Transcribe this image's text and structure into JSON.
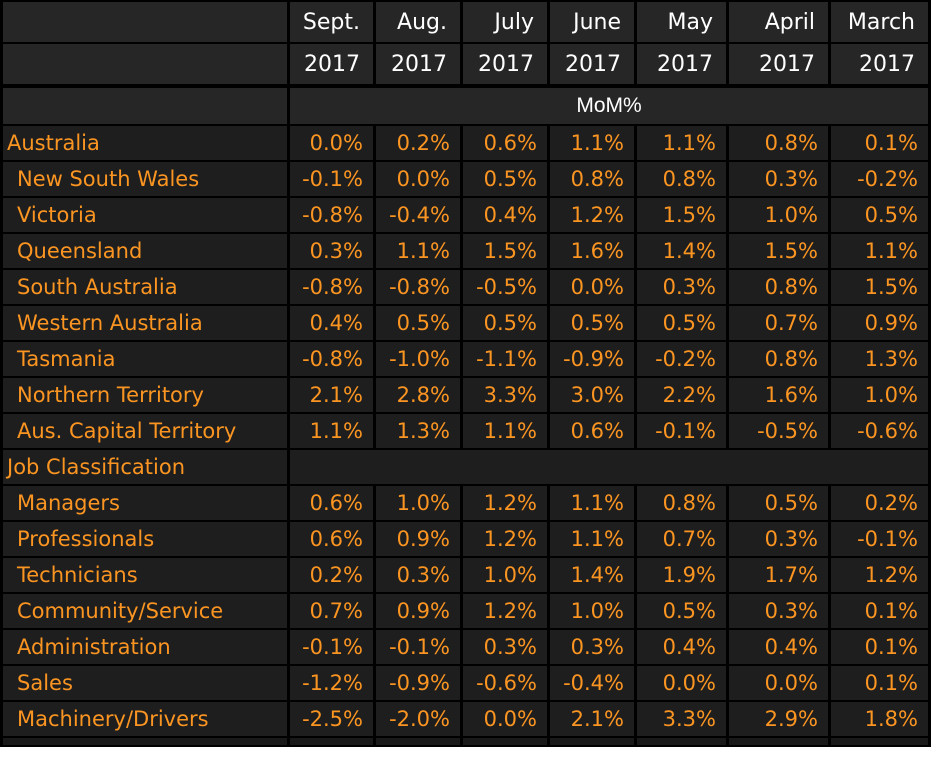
{
  "table": {
    "month_headers": [
      "Sept.",
      "Aug.",
      "July",
      "June",
      "May",
      "April",
      "March"
    ],
    "year_headers": [
      "2017",
      "2017",
      "2017",
      "2017",
      "2017",
      "2017",
      "2017"
    ],
    "unit_header": "MoM%",
    "rows": [
      {
        "label": "Australia",
        "indent": false,
        "section_header": false,
        "values": [
          "0.0%",
          "0.2%",
          "0.6%",
          "1.1%",
          "1.1%",
          "0.8%",
          "0.1%"
        ]
      },
      {
        "label": "New South Wales",
        "indent": true,
        "section_header": false,
        "values": [
          "-0.1%",
          "0.0%",
          "0.5%",
          "0.8%",
          "0.8%",
          "0.3%",
          "-0.2%"
        ]
      },
      {
        "label": "Victoria",
        "indent": true,
        "section_header": false,
        "values": [
          "-0.8%",
          "-0.4%",
          "0.4%",
          "1.2%",
          "1.5%",
          "1.0%",
          "0.5%"
        ]
      },
      {
        "label": "Queensland",
        "indent": true,
        "section_header": false,
        "values": [
          "0.3%",
          "1.1%",
          "1.5%",
          "1.6%",
          "1.4%",
          "1.5%",
          "1.1%"
        ]
      },
      {
        "label": "South Australia",
        "indent": true,
        "section_header": false,
        "values": [
          "-0.8%",
          "-0.8%",
          "-0.5%",
          "0.0%",
          "0.3%",
          "0.8%",
          "1.5%"
        ]
      },
      {
        "label": "Western Australia",
        "indent": true,
        "section_header": false,
        "values": [
          "0.4%",
          "0.5%",
          "0.5%",
          "0.5%",
          "0.5%",
          "0.7%",
          "0.9%"
        ]
      },
      {
        "label": "Tasmania",
        "indent": true,
        "section_header": false,
        "values": [
          "-0.8%",
          "-1.0%",
          "-1.1%",
          "-0.9%",
          "-0.2%",
          "0.8%",
          "1.3%"
        ]
      },
      {
        "label": "Northern Territory",
        "indent": true,
        "section_header": false,
        "values": [
          "2.1%",
          "2.8%",
          "3.3%",
          "3.0%",
          "2.2%",
          "1.6%",
          "1.0%"
        ]
      },
      {
        "label": "Aus. Capital Territory",
        "indent": true,
        "section_header": false,
        "values": [
          "1.1%",
          "1.3%",
          "1.1%",
          "0.6%",
          "-0.1%",
          "-0.5%",
          "-0.6%"
        ]
      },
      {
        "label": "Job Classification",
        "indent": false,
        "section_header": true,
        "values": []
      },
      {
        "label": "Managers",
        "indent": true,
        "section_header": false,
        "values": [
          "0.6%",
          "1.0%",
          "1.2%",
          "1.1%",
          "0.8%",
          "0.5%",
          "0.2%"
        ]
      },
      {
        "label": "Professionals",
        "indent": true,
        "section_header": false,
        "values": [
          "0.6%",
          "0.9%",
          "1.2%",
          "1.1%",
          "0.7%",
          "0.3%",
          "-0.1%"
        ]
      },
      {
        "label": "Technicians",
        "indent": true,
        "section_header": false,
        "values": [
          "0.2%",
          "0.3%",
          "1.0%",
          "1.4%",
          "1.9%",
          "1.7%",
          "1.2%"
        ]
      },
      {
        "label": "Community/Service",
        "indent": true,
        "section_header": false,
        "values": [
          "0.7%",
          "0.9%",
          "1.2%",
          "1.0%",
          "0.5%",
          "0.3%",
          "0.1%"
        ]
      },
      {
        "label": "Administration",
        "indent": true,
        "section_header": false,
        "values": [
          "-0.1%",
          "-0.1%",
          "0.3%",
          "0.3%",
          "0.4%",
          "0.4%",
          "0.1%"
        ]
      },
      {
        "label": "Sales",
        "indent": true,
        "section_header": false,
        "values": [
          "-1.2%",
          "-0.9%",
          "-0.6%",
          "-0.4%",
          "0.0%",
          "0.0%",
          "0.1%"
        ]
      },
      {
        "label": "Machinery/Drivers",
        "indent": true,
        "section_header": false,
        "values": [
          "-2.5%",
          "-2.0%",
          "0.0%",
          "2.1%",
          "3.3%",
          "2.9%",
          "1.8%"
        ]
      }
    ]
  },
  "colors": {
    "accent_orange": "#fb9522",
    "header_text": "#ffffff",
    "cell_background": "#1e1e1e",
    "header_background": "#262626",
    "grid_lines": "#000000"
  }
}
